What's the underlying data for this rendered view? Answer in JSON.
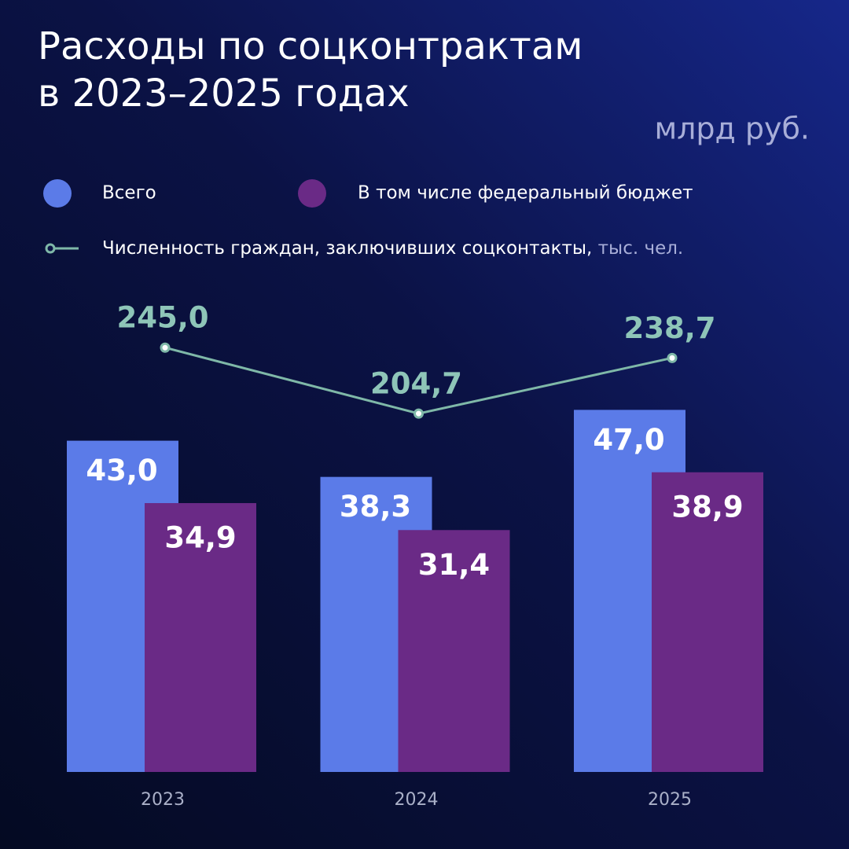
{
  "chart_data": {
    "type": "bar",
    "title": [
      "Расходы по соцконтрактам",
      "в 2023–2025 годах"
    ],
    "unit": "млрд руб.",
    "categories": [
      "2023",
      "2024",
      "2025"
    ],
    "ylim": [
      0,
      50
    ],
    "y2lim": [
      150,
      260
    ],
    "series": [
      {
        "name": "Всего",
        "type": "bar",
        "color": "#5b7be8",
        "values": [
          43.0,
          38.3,
          47.0
        ],
        "value_labels": [
          "43,0",
          "38,3",
          "47,0"
        ]
      },
      {
        "name": "В том числе федеральный бюджет",
        "type": "bar",
        "color": "#6a2a86",
        "values": [
          34.9,
          31.4,
          38.9
        ],
        "value_labels": [
          "34,9",
          "31,4",
          "38,9"
        ]
      },
      {
        "name": "Численность граждан, заключивших соцконтакты,",
        "unit": "тыс. чел.",
        "type": "line",
        "axis": "y2",
        "color": "#7fb8a8",
        "values": [
          245.0,
          204.7,
          238.7
        ],
        "value_labels": [
          "245,0",
          "204,7",
          "238,7"
        ]
      }
    ]
  }
}
